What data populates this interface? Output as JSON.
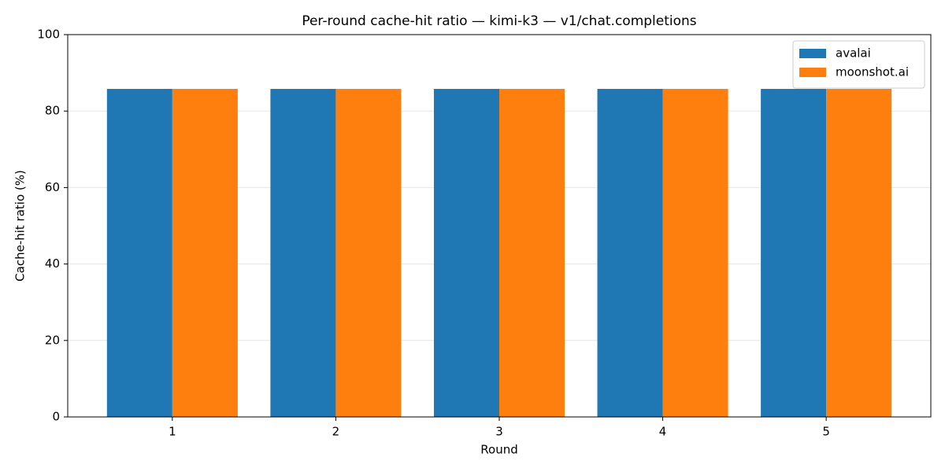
{
  "chart_data": {
    "type": "bar",
    "title": "Per-round cache-hit ratio — kimi-k3 — v1/chat.completions",
    "x_label": "Round",
    "y_label": "Cache-hit ratio (%)",
    "categories": [
      "1",
      "2",
      "3",
      "4",
      "5"
    ],
    "series": [
      {
        "name": "avalai",
        "color": "#1f77b4",
        "values": [
          85.8,
          85.8,
          85.8,
          85.8,
          85.8
        ]
      },
      {
        "name": "moonshot.ai",
        "color": "#ff7f0e",
        "values": [
          85.8,
          85.8,
          85.8,
          85.8,
          85.8
        ]
      }
    ],
    "ylim": [
      0,
      100
    ],
    "yticks": [
      0,
      20,
      40,
      60,
      80,
      100
    ],
    "grid": true,
    "legend": "upper right"
  }
}
